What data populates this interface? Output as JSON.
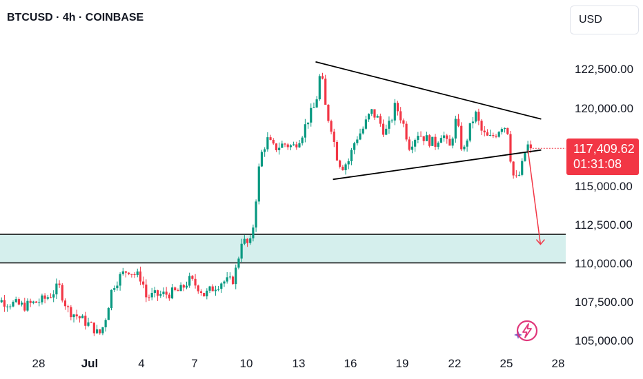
{
  "header": {
    "title": "BTCUSD · 4h · COINBASE"
  },
  "currency_button": {
    "label": "USD"
  },
  "price_tag": {
    "price": "117,409.62",
    "countdown": "01:31:08",
    "color": "#f23645"
  },
  "colors": {
    "up": "#089981",
    "down": "#f23645",
    "zone_fill": "#d5efed",
    "arrow": "#f23645"
  },
  "icons": {
    "flash": "lightning-bolt-icon",
    "sparkle": "sparkle-icon"
  },
  "chart_data": {
    "type": "candlestick",
    "title": "BTCUSD · 4h · COINBASE",
    "y_tick_labels": [
      "122,500.00",
      "120,000.00",
      "117,500.00",
      "115,000.00",
      "112,500.00",
      "110,000.00",
      "107,500.00",
      "105,000.00"
    ],
    "y_tick_values": [
      122500,
      120000,
      117500,
      115000,
      112500,
      110000,
      107500,
      105000
    ],
    "x_tick_labels": [
      "28",
      "Jul",
      "4",
      "7",
      "10",
      "13",
      "16",
      "19",
      "22",
      "25",
      "28"
    ],
    "x_tick_values": [
      "Jun 28",
      "Jul 1",
      "Jul 4",
      "Jul 7",
      "Jul 10",
      "Jul 13",
      "Jul 16",
      "Jul 19",
      "Jul 22",
      "Jul 25",
      "Jul 28"
    ],
    "ylim": [
      104200,
      124500
    ],
    "last_price": 117409.62,
    "support_zone": {
      "low": 110000,
      "high": 111850
    },
    "triangle": {
      "upper": {
        "from": [
          "Jul 14",
          123000
        ],
        "to": [
          "Jul 27",
          119300
        ]
      },
      "lower": {
        "from": [
          "Jul 15",
          115400
        ],
        "to": [
          "Jul 27",
          117300
        ]
      }
    },
    "projection_arrow": {
      "from": [
        "Jul 26",
        117300
      ],
      "to": [
        "Jul 27",
        111200
      ]
    },
    "waypoints": [
      [
        "Jun 25.9",
        108100
      ],
      [
        "Jun 27.0",
        107500
      ],
      [
        "Jun 28.2",
        107200
      ],
      [
        "Jun 29.3",
        107600
      ],
      [
        "Jun 29.8",
        108000
      ],
      [
        "Jun 30.2",
        108500
      ],
      [
        "Jun 30.5",
        107600
      ],
      [
        "Jun 30.7",
        107000
      ],
      [
        "Jul 1.2",
        105800
      ],
      [
        "Jul 1.5",
        105300
      ],
      [
        "Jul 1.8",
        106000
      ],
      [
        "Jul 2.3",
        108500
      ],
      [
        "Jul 2.8",
        109200
      ],
      [
        "Jul 3.2",
        109600
      ],
      [
        "Jul 3.5",
        109300
      ],
      [
        "Jul 4.0",
        109000
      ],
      [
        "Jul 4.2",
        107800
      ],
      [
        "Jul 4.8",
        107900
      ],
      [
        "Jul 5.5",
        108000
      ],
      [
        "Jul 6.2",
        108200
      ],
      [
        "Jul 6.7",
        108900
      ],
      [
        "Jul 7.3",
        108400
      ],
      [
        "Jul 7.6",
        107900
      ],
      [
        "Jul 8.2",
        108500
      ],
      [
        "Jul 8.6",
        108800
      ],
      [
        "Jul 9.2",
        108800
      ],
      [
        "Jul 9.5",
        109900
      ],
      [
        "Jul 9.7",
        111500
      ],
      [
        "Jul 10.1",
        111200
      ],
      [
        "Jul 10.3",
        111300
      ],
      [
        "Jul 10.5",
        113500
      ],
      [
        "Jul 10.8",
        116800
      ],
      [
        "Jul 11.2",
        118000
      ],
      [
        "Jul 11.6",
        117400
      ],
      [
        "Jul 12.2",
        117700
      ],
      [
        "Jul 12.7",
        117500
      ],
      [
        "Jul 13.2",
        118300
      ],
      [
        "Jul 13.6",
        119400
      ],
      [
        "Jul 14.0",
        120200
      ],
      [
        "Jul 14.3",
        122500
      ],
      [
        "Jul 14.6",
        119800
      ],
      [
        "Jul 14.9",
        118800
      ],
      [
        "Jul 15.2",
        117000
      ],
      [
        "Jul 15.5",
        116200
      ],
      [
        "Jul 15.9",
        116600
      ],
      [
        "Jul 16.3",
        118000
      ],
      [
        "Jul 16.7",
        118600
      ],
      [
        "Jul 17.2",
        119800
      ],
      [
        "Jul 17.6",
        119300
      ],
      [
        "Jul 18.0",
        118400
      ],
      [
        "Jul 18.3",
        119000
      ],
      [
        "Jul 18.6",
        120200
      ],
      [
        "Jul 19.0",
        119200
      ],
      [
        "Jul 19.4",
        117600
      ],
      [
        "Jul 19.9",
        118400
      ],
      [
        "Jul 20.4",
        118000
      ],
      [
        "Jul 20.9",
        117700
      ],
      [
        "Jul 21.3",
        118500
      ],
      [
        "Jul 21.7",
        117300
      ],
      [
        "Jul 22.1",
        119300
      ],
      [
        "Jul 22.5",
        117000
      ],
      [
        "Jul 22.8",
        118400
      ],
      [
        "Jul 23.2",
        119700
      ],
      [
        "Jul 23.6",
        118400
      ],
      [
        "Jul 24.0",
        118000
      ],
      [
        "Jul 24.4",
        118400
      ],
      [
        "Jul 24.8",
        119000
      ],
      [
        "Jul 25.1",
        118500
      ],
      [
        "Jul 25.3",
        116000
      ],
      [
        "Jul 25.5",
        115300
      ],
      [
        "Jul 25.8",
        115800
      ],
      [
        "Jul 26.1",
        117300
      ],
      [
        "Jul 26.3",
        117700
      ],
      [
        "Jul 26.5",
        117410
      ]
    ]
  }
}
